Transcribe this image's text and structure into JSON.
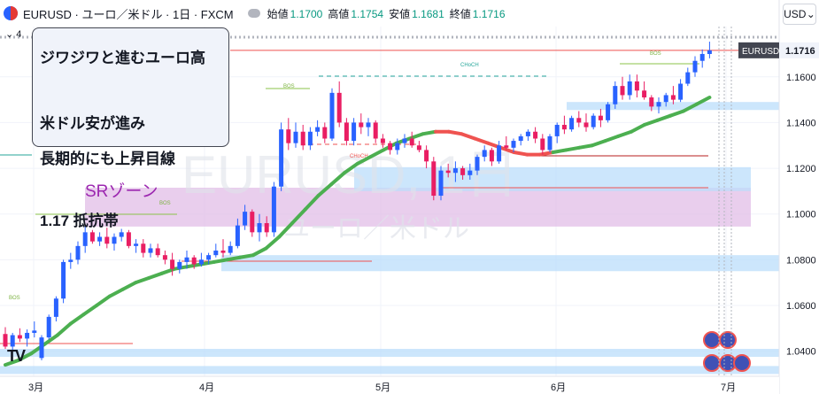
{
  "header": {
    "symbol": "EURUSD · ユーロ／米ドル · 1日 · FXCM",
    "open_label": "始値",
    "open": "1.1700",
    "high_label": "高値",
    "high": "1.1754",
    "low_label": "安値",
    "low": "1.1681",
    "close_label": "終値",
    "close": "1.1716",
    "currency": "USD",
    "lock": "4"
  },
  "note": {
    "line1": "ジワジワと進むユーロ高",
    "line2": "米ドル安が進み",
    "line3": "長期的にも上昇目線",
    "line4": "1.17 抵抗帯"
  },
  "zone_label": "SRゾーン",
  "watermark": {
    "line1": "EURUSD, 1日",
    "line2": "ユーロ／米ドル"
  },
  "logo": "TV",
  "colors": {
    "up": "#2962ff",
    "down": "#e91e63",
    "ma_up": "#4caf50",
    "ma_down": "#ef5350",
    "zone_purple": "#e1bee7",
    "zone_blue": "#bbdefb",
    "bg": "#ffffff"
  },
  "chart_data": {
    "type": "candlestick",
    "symbol": "EURUSD",
    "timeframe": "1日",
    "x_ticks": [
      "3月",
      "4月",
      "5月",
      "6月",
      "7月"
    ],
    "y_ticks": [
      1.04,
      1.06,
      1.08,
      1.1,
      1.12,
      1.14,
      1.16
    ],
    "ylim": [
      1.029,
      1.182
    ],
    "last_price": 1.1716,
    "last_label": "EURUSD",
    "candles": [
      [
        1.0475,
        1.0505,
        1.041,
        1.042
      ],
      [
        1.042,
        1.048,
        1.04,
        1.047
      ],
      [
        1.047,
        1.05,
        1.044,
        1.0455
      ],
      [
        1.0455,
        1.0495,
        1.042,
        1.048
      ],
      [
        1.048,
        1.053,
        1.046,
        1.049
      ],
      [
        1.037,
        1.047,
        1.036,
        1.046
      ],
      [
        1.046,
        1.056,
        1.045,
        1.055
      ],
      [
        1.055,
        1.064,
        1.053,
        1.063
      ],
      [
        1.063,
        1.08,
        1.061,
        1.079
      ],
      [
        1.079,
        1.083,
        1.076,
        1.08
      ],
      [
        1.08,
        1.088,
        1.078,
        1.086
      ],
      [
        1.086,
        1.095,
        1.083,
        1.092
      ],
      [
        1.092,
        1.093,
        1.087,
        1.088
      ],
      [
        1.088,
        1.092,
        1.086,
        1.09
      ],
      [
        1.09,
        1.094,
        1.085,
        1.087
      ],
      [
        1.087,
        1.0915,
        1.084,
        1.09
      ],
      [
        1.09,
        1.0935,
        1.088,
        1.092
      ],
      [
        1.092,
        1.093,
        1.085,
        1.086
      ],
      [
        1.086,
        1.089,
        1.083,
        1.087
      ],
      [
        1.087,
        1.089,
        1.081,
        1.083
      ],
      [
        1.083,
        1.087,
        1.081,
        1.085
      ],
      [
        1.085,
        1.087,
        1.081,
        1.082
      ],
      [
        1.082,
        1.084,
        1.078,
        1.08
      ],
      [
        1.08,
        1.083,
        1.073,
        1.076
      ],
      [
        1.076,
        1.08,
        1.074,
        1.079
      ],
      [
        1.079,
        1.084,
        1.076,
        1.081
      ],
      [
        1.081,
        1.082,
        1.076,
        1.078
      ],
      [
        1.078,
        1.083,
        1.077,
        1.08
      ],
      [
        1.08,
        1.083,
        1.078,
        1.082
      ],
      [
        1.082,
        1.087,
        1.081,
        1.084
      ],
      [
        1.084,
        1.089,
        1.081,
        1.083
      ],
      [
        1.083,
        1.088,
        1.082,
        1.086
      ],
      [
        1.086,
        1.098,
        1.085,
        1.095
      ],
      [
        1.095,
        1.104,
        1.093,
        1.101
      ],
      [
        1.101,
        1.102,
        1.09,
        1.092
      ],
      [
        1.092,
        1.1,
        1.088,
        1.096
      ],
      [
        1.096,
        1.099,
        1.09,
        1.092
      ],
      [
        1.092,
        1.114,
        1.09,
        1.112
      ],
      [
        1.112,
        1.14,
        1.11,
        1.137
      ],
      [
        1.137,
        1.142,
        1.128,
        1.131
      ],
      [
        1.131,
        1.14,
        1.129,
        1.136
      ],
      [
        1.136,
        1.139,
        1.128,
        1.13
      ],
      [
        1.13,
        1.138,
        1.128,
        1.136
      ],
      [
        1.136,
        1.141,
        1.134,
        1.138
      ],
      [
        1.138,
        1.14,
        1.131,
        1.133
      ],
      [
        1.133,
        1.155,
        1.132,
        1.153
      ],
      [
        1.153,
        1.158,
        1.138,
        1.14
      ],
      [
        1.14,
        1.142,
        1.13,
        1.132
      ],
      [
        1.132,
        1.142,
        1.13,
        1.14
      ],
      [
        1.14,
        1.144,
        1.135,
        1.138
      ],
      [
        1.138,
        1.142,
        1.134,
        1.14
      ],
      [
        1.14,
        1.141,
        1.131,
        1.133
      ],
      [
        1.133,
        1.135,
        1.129,
        1.131
      ],
      [
        1.131,
        1.132,
        1.126,
        1.128
      ],
      [
        1.128,
        1.133,
        1.126,
        1.131
      ],
      [
        1.131,
        1.135,
        1.129,
        1.133
      ],
      [
        1.133,
        1.136,
        1.129,
        1.13
      ],
      [
        1.13,
        1.132,
        1.127,
        1.128
      ],
      [
        1.128,
        1.13,
        1.12,
        1.123
      ],
      [
        1.123,
        1.125,
        1.106,
        1.108
      ],
      [
        1.108,
        1.121,
        1.106,
        1.119
      ],
      [
        1.119,
        1.122,
        1.116,
        1.118
      ],
      [
        1.118,
        1.123,
        1.114,
        1.12
      ],
      [
        1.12,
        1.121,
        1.115,
        1.117
      ],
      [
        1.117,
        1.122,
        1.115,
        1.119
      ],
      [
        1.119,
        1.126,
        1.117,
        1.125
      ],
      [
        1.125,
        1.13,
        1.123,
        1.128
      ],
      [
        1.128,
        1.129,
        1.121,
        1.123
      ],
      [
        1.123,
        1.132,
        1.122,
        1.13
      ],
      [
        1.13,
        1.134,
        1.128,
        1.129
      ],
      [
        1.129,
        1.133,
        1.127,
        1.132
      ],
      [
        1.132,
        1.135,
        1.13,
        1.134
      ],
      [
        1.134,
        1.137,
        1.132,
        1.136
      ],
      [
        1.136,
        1.138,
        1.131,
        1.133
      ],
      [
        1.133,
        1.135,
        1.126,
        1.128
      ],
      [
        1.128,
        1.135,
        1.127,
        1.134
      ],
      [
        1.134,
        1.14,
        1.131,
        1.139
      ],
      [
        1.139,
        1.143,
        1.135,
        1.137
      ],
      [
        1.137,
        1.143,
        1.136,
        1.142
      ],
      [
        1.142,
        1.145,
        1.138,
        1.14
      ],
      [
        1.14,
        1.144,
        1.136,
        1.138
      ],
      [
        1.138,
        1.144,
        1.137,
        1.143
      ],
      [
        1.143,
        1.146,
        1.138,
        1.141
      ],
      [
        1.141,
        1.149,
        1.14,
        1.148
      ],
      [
        1.148,
        1.158,
        1.146,
        1.156
      ],
      [
        1.156,
        1.16,
        1.15,
        1.152
      ],
      [
        1.152,
        1.161,
        1.15,
        1.158
      ],
      [
        1.158,
        1.161,
        1.151,
        1.154
      ],
      [
        1.154,
        1.158,
        1.15,
        1.151
      ],
      [
        1.151,
        1.152,
        1.145,
        1.147
      ],
      [
        1.147,
        1.151,
        1.144,
        1.149
      ],
      [
        1.149,
        1.153,
        1.147,
        1.152
      ],
      [
        1.152,
        1.156,
        1.148,
        1.15
      ],
      [
        1.15,
        1.159,
        1.149,
        1.157
      ],
      [
        1.157,
        1.164,
        1.156,
        1.162
      ],
      [
        1.162,
        1.169,
        1.16,
        1.167
      ],
      [
        1.167,
        1.172,
        1.164,
        1.17
      ],
      [
        1.17,
        1.1754,
        1.1681,
        1.1716
      ]
    ],
    "ma_points": [
      [
        1.034
      ],
      [
        1.036
      ],
      [
        1.039
      ],
      [
        1.043
      ],
      [
        1.047
      ],
      [
        1.052
      ],
      [
        1.056
      ],
      [
        1.06
      ],
      [
        1.064
      ],
      [
        1.067
      ],
      [
        1.07
      ],
      [
        1.072
      ],
      [
        1.074
      ],
      [
        1.076
      ],
      [
        1.077
      ],
      [
        1.078
      ],
      [
        1.079
      ],
      [
        1.08
      ],
      [
        1.081
      ],
      [
        1.082
      ],
      [
        1.085
      ],
      [
        1.09
      ],
      [
        1.096
      ],
      [
        1.102
      ],
      [
        1.108
      ],
      [
        1.113
      ],
      [
        1.118
      ],
      [
        1.122
      ],
      [
        1.125
      ],
      [
        1.128
      ],
      [
        1.131
      ],
      [
        1.133
      ],
      [
        1.135
      ],
      [
        1.136
      ],
      [
        1.136
      ],
      [
        1.135
      ],
      [
        1.133
      ],
      [
        1.131
      ],
      [
        1.129
      ],
      [
        1.127
      ],
      [
        1.126
      ],
      [
        1.126
      ],
      [
        1.127
      ],
      [
        1.128
      ],
      [
        1.129
      ],
      [
        1.13
      ],
      [
        1.132
      ],
      [
        1.134
      ],
      [
        1.136
      ],
      [
        1.139
      ],
      [
        1.141
      ],
      [
        1.143
      ],
      [
        1.145
      ],
      [
        1.148
      ],
      [
        1.151
      ]
    ],
    "zones": [
      {
        "kind": "sr",
        "from": 1.0945,
        "to": 1.1115,
        "color": "#e1bee7"
      },
      {
        "kind": "sr",
        "from": 1.1455,
        "to": 1.149,
        "color": "#bbdefb"
      },
      {
        "kind": "sr",
        "from": 1.11,
        "to": 1.1205,
        "color": "#bbdefb"
      },
      {
        "kind": "sr",
        "from": 1.075,
        "to": 1.082,
        "color": "#bbdefb"
      },
      {
        "kind": "sr",
        "from": 1.0375,
        "to": 1.041,
        "color": "#bbdefb"
      },
      {
        "kind": "sr",
        "from": 1.03,
        "to": 1.0335,
        "color": "#bbdefb"
      }
    ],
    "annotations": [
      "BOS",
      "BOS",
      "CHoCH",
      "CHoCH",
      "BOS",
      "BOS"
    ],
    "grid": true,
    "legend": "none"
  }
}
